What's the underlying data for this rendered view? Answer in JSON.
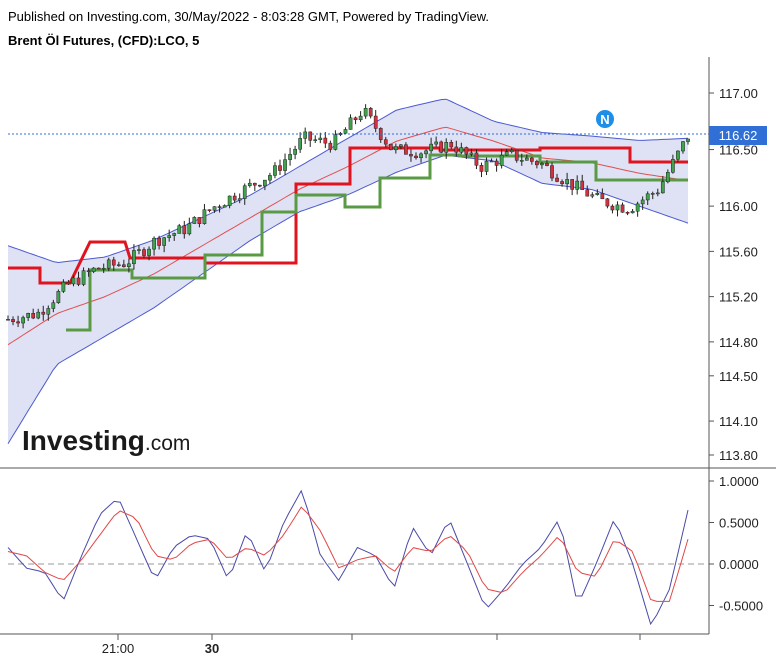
{
  "header": {
    "line1": "Published on Investing.com, 30/May/2022 - 8:03:28 GMT, Powered by TradingView.",
    "line2": "Brent Öl Futures, (CFD):LCO, 5"
  },
  "logo": {
    "main": "Investing",
    "suffix": ".com"
  },
  "event_badge": "N",
  "colors": {
    "up_candle": "#3fa34d",
    "down_candle": "#d4313f",
    "upper_line": "#e0141e",
    "lower_line": "#5a9a45",
    "band_fill": "#d9dcf2",
    "band_line": "#4c5ad0",
    "mid_line": "#e05050",
    "osc_fast": "#4a4aa8",
    "osc_slow": "#e04848",
    "current_price_bg": "#2f6fd6",
    "badge": "#1e8ee8"
  },
  "chart_data": [
    {
      "type": "candlestick",
      "title": "Brent Öl Futures, (CFD):LCO, 5",
      "y_ticks": [
        "117.00",
        "116.50",
        "116.00",
        "115.60",
        "115.20",
        "114.80",
        "114.50",
        "114.10",
        "113.80"
      ],
      "ylim": [
        113.7,
        117.35
      ],
      "x_ticks": [
        "21:00",
        "30",
        "",
        "",
        ""
      ],
      "current_price": "116.62",
      "close_start": 115.0,
      "close_end": 116.62,
      "key_closes": [
        115.0,
        115.05,
        115.3,
        115.45,
        115.5,
        115.7,
        115.8,
        116.0,
        116.15,
        116.3,
        116.6,
        116.55,
        116.85,
        116.5,
        116.48,
        116.55,
        116.35,
        116.45,
        116.38,
        116.2,
        116.05,
        115.98,
        116.15,
        116.62
      ],
      "upper_band_approx": [
        115.65,
        115.5,
        115.55,
        115.7,
        115.9,
        116.1,
        116.35,
        116.6,
        116.85,
        116.95,
        116.75,
        116.65,
        116.62,
        116.58,
        116.6
      ],
      "lower_band_approx": [
        113.9,
        114.6,
        114.85,
        115.1,
        115.4,
        115.7,
        115.95,
        116.1,
        116.3,
        116.45,
        116.4,
        116.2,
        116.15,
        116.0,
        115.85
      ],
      "ylabel": ""
    },
    {
      "type": "line",
      "y_ticks": [
        "1.0000",
        "0.5000",
        "0.0000",
        "-0.5000"
      ],
      "ylim": [
        -0.85,
        1.05
      ],
      "zero_line": 0.0,
      "series": [
        {
          "values": [
            0.2,
            -0.05,
            -0.1,
            -0.45,
            0.1,
            0.6,
            0.8,
            0.3,
            -0.2,
            0.2,
            0.35,
            0.3,
            -0.2,
            0.4,
            -0.1,
            0.5,
            0.9,
            0.1,
            -0.2,
            0.2,
            0.1,
            -0.3,
            0.45,
            0.1,
            0.55,
            0.0,
            -0.55,
            -0.3,
            0.0,
            0.2,
            0.55,
            -0.5,
            0.0,
            0.55,
            0.0,
            -0.75,
            -0.3,
            0.65
          ]
        },
        {
          "values": [
            0.15,
            0.1,
            -0.1,
            -0.2,
            0.05,
            0.35,
            0.65,
            0.55,
            0.1,
            0.05,
            0.25,
            0.3,
            0.05,
            0.2,
            0.1,
            0.35,
            0.7,
            0.4,
            -0.05,
            0.05,
            0.1,
            -0.1,
            0.2,
            0.15,
            0.35,
            0.15,
            -0.3,
            -0.35,
            -0.1,
            0.1,
            0.35,
            -0.1,
            -0.15,
            0.3,
            0.15,
            -0.45,
            -0.45,
            0.3
          ]
        }
      ]
    }
  ]
}
